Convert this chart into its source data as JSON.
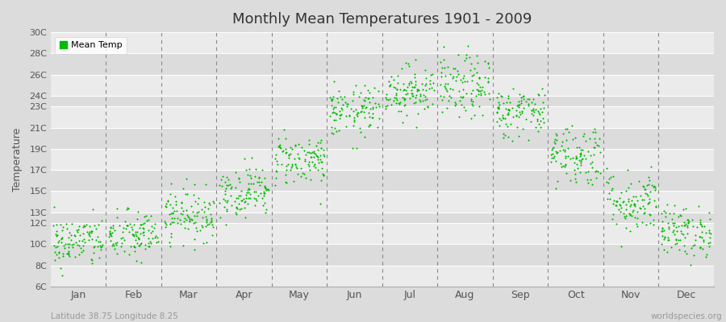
{
  "title": "Monthly Mean Temperatures 1901 - 2009",
  "ylabel": "Temperature",
  "xlabel_bottom_left": "Latitude 38.75 Longitude 8.25",
  "xlabel_bottom_right": "worldspecies.org",
  "legend_label": "Mean Temp",
  "dot_color": "#00BB00",
  "background_color": "#DCDCDC",
  "plot_bg_color": "#EBEBEB",
  "stripe_light": "#EBEBEB",
  "stripe_dark": "#DCDCDC",
  "grid_color": "#FFFFFF",
  "dashed_line_color": "#888888",
  "ytick_labels": [
    "6C",
    "8C",
    "10C",
    "12C",
    "13C",
    "15C",
    "17C",
    "19C",
    "21C",
    "23C",
    "24C",
    "26C",
    "28C",
    "30C"
  ],
  "ytick_values": [
    6,
    8,
    10,
    12,
    13,
    15,
    17,
    19,
    21,
    23,
    24,
    26,
    28,
    30
  ],
  "ylim": [
    6,
    30
  ],
  "months": [
    "Jan",
    "Feb",
    "Mar",
    "Apr",
    "May",
    "Jun",
    "Jul",
    "Aug",
    "Sep",
    "Oct",
    "Nov",
    "Dec"
  ],
  "month_centers": [
    0.5,
    1.5,
    2.5,
    3.5,
    4.5,
    5.5,
    6.5,
    7.5,
    8.5,
    9.5,
    10.5,
    11.5
  ],
  "month_dividers": [
    1.0,
    2.0,
    3.0,
    4.0,
    5.0,
    6.0,
    7.0,
    8.0,
    9.0,
    10.0,
    11.0
  ],
  "xlim": [
    0,
    12
  ],
  "mean_temps": [
    10.2,
    10.8,
    12.8,
    15.0,
    18.0,
    22.5,
    24.5,
    24.8,
    22.5,
    18.5,
    14.0,
    11.2
  ],
  "temp_spread": [
    1.2,
    1.2,
    1.2,
    1.2,
    1.2,
    1.2,
    1.2,
    1.5,
    1.2,
    1.5,
    1.5,
    1.2
  ],
  "n_points": 109
}
